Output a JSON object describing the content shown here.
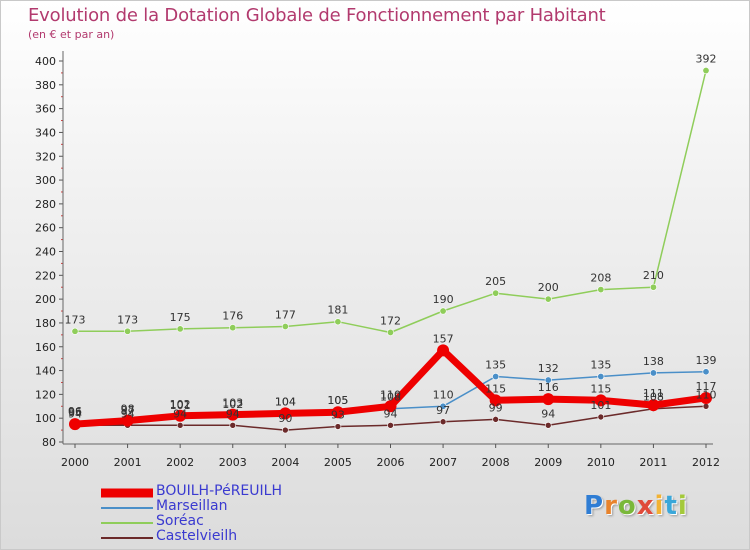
{
  "title": "Evolution de la Dotation Globale de Fonctionnement par Habitant",
  "subtitle": "(en € et par an)",
  "logo": {
    "text": "Proxiti",
    "colors": [
      "#2f7dd4",
      "#e8832c",
      "#7ab83a",
      "#e04a3a",
      "#f2b233",
      "#3aa7d9",
      "#a4c93a"
    ]
  },
  "chart_data": {
    "type": "line",
    "title": "Evolution de la Dotation Globale de Fonctionnement par Habitant",
    "subtitle": "(en € et par an)",
    "xlabel": "",
    "ylabel": "",
    "ylim": [
      80,
      400
    ],
    "y_ticks": [
      80,
      100,
      120,
      140,
      160,
      180,
      200,
      220,
      240,
      260,
      280,
      300,
      320,
      340,
      360,
      380,
      400
    ],
    "categories": [
      "2000",
      "2001",
      "2002",
      "2003",
      "2004",
      "2005",
      "2006",
      "2007",
      "2008",
      "2009",
      "2010",
      "2011",
      "2012"
    ],
    "series": [
      {
        "name": "Soréac",
        "color": "#8fcd5a",
        "values": [
          173,
          173,
          175,
          176,
          177,
          181,
          172,
          190,
          205,
          200,
          208,
          210,
          392
        ],
        "labels": [
          "173",
          "173",
          "175",
          "176",
          "177",
          "181",
          "172",
          "190",
          "205",
          "200",
          "208",
          "210",
          "392"
        ]
      },
      {
        "name": "Marseillan",
        "color": "#4a8fc8",
        "values": [
          96,
          97,
          101,
          102,
          104,
          105,
          108,
          110,
          135,
          132,
          135,
          138,
          139
        ],
        "labels": [
          "96",
          "97",
          "101",
          "102",
          "104",
          "105",
          "108",
          "110",
          "135",
          "132",
          "135",
          "138",
          "139"
        ]
      },
      {
        "name": "Castelvieilh",
        "color": "#6b2a2a",
        "values": [
          94,
          94,
          94,
          94,
          90,
          93,
          94,
          97,
          99,
          94,
          101,
          108,
          110
        ],
        "labels": [
          "94",
          "94",
          "94",
          "94",
          "90",
          "93",
          "94",
          "97",
          "99",
          "94",
          "101",
          "108",
          "110"
        ]
      },
      {
        "name": "BOUILH-PéREUILH",
        "color": "#ee0000",
        "values": [
          95,
          98,
          102,
          103,
          104,
          105,
          110,
          157,
          115,
          116,
          115,
          111,
          117
        ],
        "labels": [
          "95",
          "98",
          "102",
          "103",
          "104",
          "105",
          "110",
          "157",
          "115",
          "116",
          "115",
          "111",
          "117"
        ]
      }
    ]
  }
}
